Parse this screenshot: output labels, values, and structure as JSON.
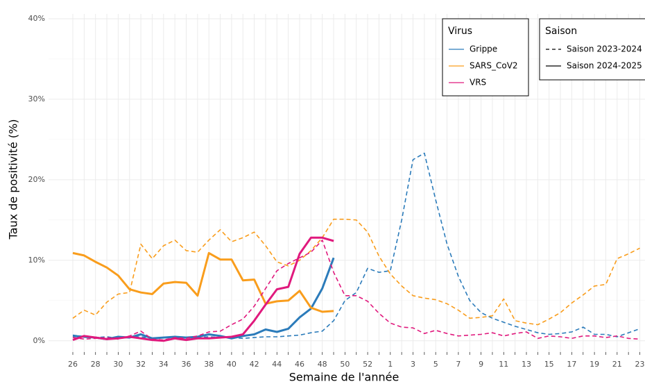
{
  "chart_data": {
    "type": "line",
    "x_label": "Semaine de l'année",
    "y_label": "Taux de positivité (%)",
    "categories": [
      "26",
      null,
      "28",
      null,
      "30",
      null,
      "32",
      null,
      "34",
      null,
      "36",
      null,
      "38",
      null,
      "40",
      null,
      "42",
      null,
      "44",
      null,
      "46",
      null,
      "48",
      null,
      "50",
      null,
      "52",
      null,
      "1",
      null,
      "3",
      null,
      "5",
      null,
      "7",
      null,
      "9",
      null,
      "11",
      null,
      "13",
      null,
      "15",
      null,
      "17",
      null,
      "19",
      null,
      "21",
      null,
      "23"
    ],
    "ylim": [
      -1.4,
      40.6
    ],
    "yticks": [
      {
        "value": 0,
        "label": "0%"
      },
      {
        "value": 10,
        "label": "10%"
      },
      {
        "value": 20,
        "label": "20%"
      },
      {
        "value": 30,
        "label": "30%"
      },
      {
        "value": 40,
        "label": "40%"
      }
    ],
    "grid": true,
    "legends": [
      {
        "title": "Virus",
        "entries": [
          {
            "label": "Grippe",
            "color": "#2b7bba"
          },
          {
            "label": "SARS_CoV2",
            "color": "#f99d1c"
          },
          {
            "label": "VRS",
            "color": "#e0197d"
          }
        ]
      },
      {
        "title": "Saison",
        "entries": [
          {
            "label": "Saison 2023-2024",
            "linestyle": "dashed"
          },
          {
            "label": "Saison 2024-2025",
            "linestyle": "solid"
          }
        ]
      }
    ],
    "series": [
      {
        "virus": "Grippe",
        "season": "Saison 2023-2024",
        "values": [
          0.7,
          0.5,
          0.4,
          0.5,
          0.3,
          0.4,
          0.5,
          0.3,
          0.4,
          0.5,
          0.4,
          0.4,
          0.5,
          0.4,
          0.4,
          0.3,
          0.4,
          0.5,
          0.5,
          0.6,
          0.7,
          1.0,
          1.2,
          2.5,
          5.0,
          6.0,
          9.0,
          8.5,
          8.7,
          15.0,
          22.5,
          23.3,
          17.5,
          12.0,
          8.0,
          5.0,
          3.5,
          2.8,
          2.3,
          1.8,
          1.4,
          1.0,
          0.8,
          0.9,
          1.1,
          1.7,
          0.8,
          0.8,
          0.5,
          1.0,
          1.5
        ]
      },
      {
        "virus": "Grippe",
        "season": "Saison 2024-2025",
        "values": [
          0.6,
          0.5,
          0.4,
          0.2,
          0.5,
          0.4,
          0.8,
          0.3,
          0.4,
          0.5,
          0.4,
          0.5,
          0.8,
          0.6,
          0.3,
          0.6,
          0.8,
          1.4,
          1.1,
          1.5,
          2.9,
          4.0,
          6.5,
          10.3,
          null,
          null,
          null,
          null,
          null,
          null,
          null,
          null,
          null,
          null,
          null,
          null,
          null,
          null,
          null,
          null,
          null,
          null,
          null,
          null,
          null,
          null,
          null,
          null,
          null,
          null,
          null
        ]
      },
      {
        "virus": "SARS_CoV2",
        "season": "Saison 2023-2024",
        "values": [
          2.8,
          3.8,
          3.2,
          4.8,
          5.8,
          6.0,
          12.0,
          10.2,
          11.8,
          12.5,
          11.2,
          11.0,
          12.5,
          13.8,
          12.3,
          12.8,
          13.5,
          11.8,
          9.8,
          9.3,
          10.0,
          11.2,
          12.8,
          15.1,
          15.1,
          15.0,
          13.5,
          10.5,
          8.3,
          6.8,
          5.6,
          5.3,
          5.1,
          4.6,
          3.8,
          2.8,
          2.9,
          3.1,
          5.2,
          2.5,
          2.2,
          2.0,
          2.7,
          3.5,
          4.7,
          5.7,
          6.8,
          7.0,
          10.2,
          10.8,
          11.5
        ]
      },
      {
        "virus": "SARS_CoV2",
        "season": "Saison 2024-2025",
        "values": [
          10.9,
          10.6,
          9.8,
          9.1,
          8.1,
          6.4,
          6.0,
          5.8,
          7.1,
          7.3,
          7.2,
          5.6,
          10.9,
          10.1,
          10.1,
          7.5,
          7.6,
          4.6,
          4.9,
          5.0,
          6.2,
          4.1,
          3.6,
          3.7,
          null,
          null,
          null,
          null,
          null,
          null,
          null,
          null,
          null,
          null,
          null,
          null,
          null,
          null,
          null,
          null,
          null,
          null,
          null,
          null,
          null,
          null,
          null,
          null,
          null,
          null,
          null
        ]
      },
      {
        "virus": "VRS",
        "season": "Saison 2023-2024",
        "values": [
          0.4,
          0.2,
          0.3,
          0.4,
          0.2,
          0.6,
          1.2,
          0.2,
          0.1,
          0.4,
          0.3,
          0.6,
          1.1,
          1.2,
          2.0,
          2.7,
          4.3,
          6.5,
          8.7,
          9.6,
          10.3,
          11.0,
          12.5,
          8.5,
          5.6,
          5.6,
          4.9,
          3.4,
          2.2,
          1.7,
          1.6,
          0.9,
          1.3,
          0.9,
          0.6,
          0.7,
          0.8,
          1.0,
          0.6,
          0.9,
          1.1,
          0.3,
          0.6,
          0.5,
          0.3,
          0.6,
          0.6,
          0.4,
          0.6,
          0.3,
          0.2
        ]
      },
      {
        "virus": "VRS",
        "season": "Saison 2024-2025",
        "values": [
          0.1,
          0.6,
          0.4,
          0.2,
          0.3,
          0.5,
          0.3,
          0.1,
          0.0,
          0.3,
          0.1,
          0.3,
          0.3,
          0.4,
          0.5,
          0.8,
          2.5,
          4.5,
          6.4,
          6.7,
          10.8,
          12.8,
          12.8,
          12.4,
          null,
          null,
          null,
          null,
          null,
          null,
          null,
          null,
          null,
          null,
          null,
          null,
          null,
          null,
          null,
          null,
          null,
          null,
          null,
          null,
          null,
          null,
          null,
          null,
          null,
          null,
          null
        ]
      }
    ]
  }
}
